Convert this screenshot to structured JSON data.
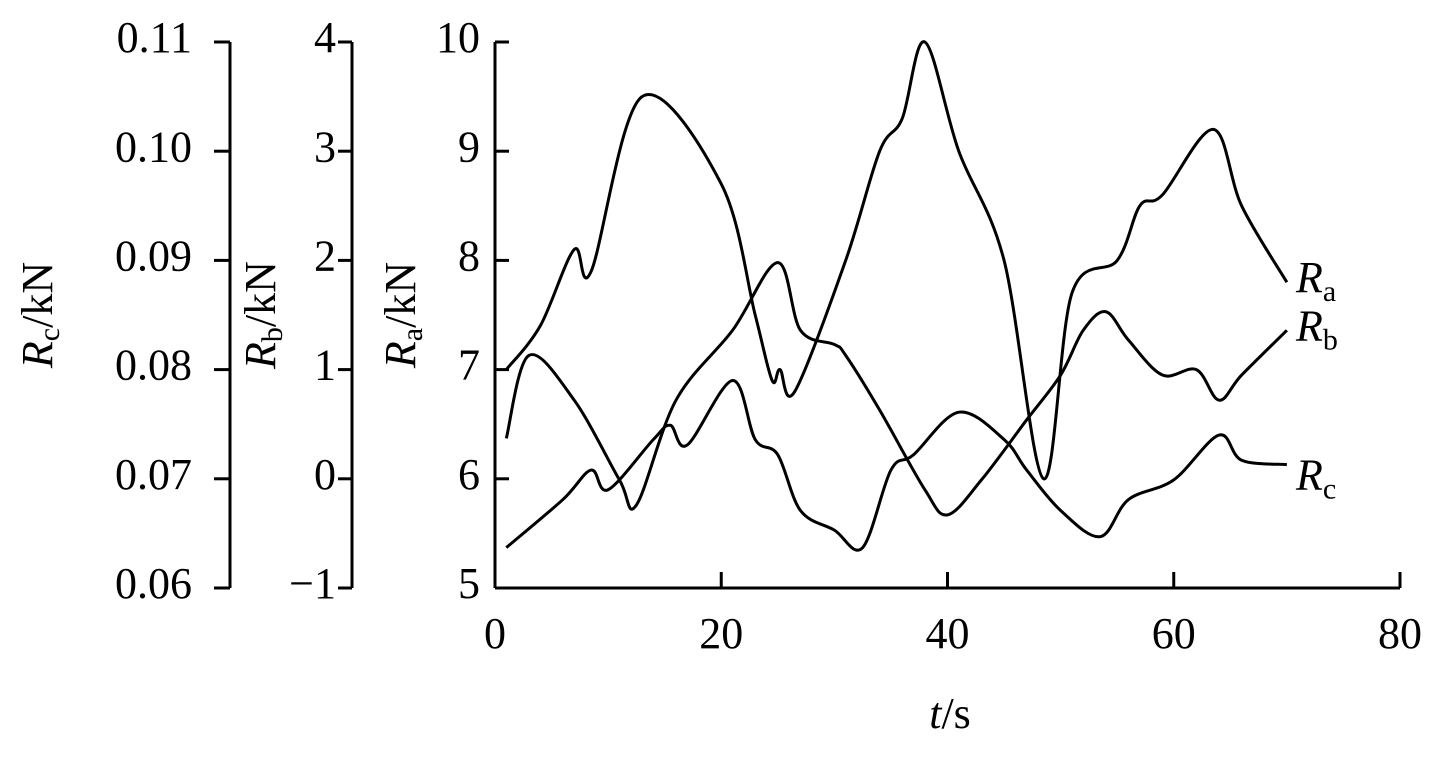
{
  "chart_data": {
    "type": "line",
    "x_label": {
      "symbol": "t",
      "unit": "/s"
    },
    "xlim": [
      0,
      80
    ],
    "xticks": [
      0,
      20,
      40,
      60,
      80
    ],
    "axes": [
      {
        "symbol": "R",
        "subscript": "c",
        "unit": "/kN",
        "ylim": [
          0.06,
          0.11
        ],
        "yticks": [
          {
            "value": 0.06,
            "label": "0.06"
          },
          {
            "value": 0.07,
            "label": "0.07"
          },
          {
            "value": 0.08,
            "label": "0.08"
          },
          {
            "value": 0.09,
            "label": "0.09"
          },
          {
            "value": 0.1,
            "label": "0.10"
          },
          {
            "value": 0.11,
            "label": "0.11"
          }
        ]
      },
      {
        "symbol": "R",
        "subscript": "b",
        "unit": "/kN",
        "ylim": [
          -1,
          4
        ],
        "yticks": [
          {
            "value": -1,
            "label": "−1"
          },
          0,
          1,
          2,
          3,
          4
        ]
      },
      {
        "symbol": "R",
        "subscript": "a",
        "unit": "/kN",
        "ylim": [
          5,
          10
        ],
        "yticks": [
          5,
          6,
          7,
          8,
          9,
          10
        ]
      }
    ],
    "series": [
      {
        "name": "R",
        "subscript": "a",
        "axis": 2,
        "color": "#000000",
        "x": [
          1,
          4,
          7,
          8.5,
          13,
          20,
          23,
          24.5,
          25.2,
          26.5,
          31,
          34,
          36,
          38,
          41,
          45,
          48.5,
          51,
          55,
          57,
          59,
          63.5,
          66,
          70
        ],
        "values": [
          7.0,
          7.4,
          8.1,
          7.9,
          9.5,
          8.7,
          7.5,
          6.9,
          7.0,
          6.8,
          8.0,
          9.0,
          9.3,
          10.0,
          9.0,
          8.0,
          6.0,
          7.7,
          8.0,
          8.5,
          8.6,
          9.2,
          8.5,
          7.8
        ]
      },
      {
        "name": "R",
        "subscript": "b",
        "axis": 1,
        "color": "#000000",
        "x": [
          1,
          3,
          7,
          11,
          12.5,
          16,
          21,
          25,
          27,
          30,
          31,
          34,
          38,
          40,
          43,
          47,
          50,
          52,
          54,
          56,
          59,
          62,
          64,
          66,
          70
        ],
        "values": [
          0.37,
          1.13,
          0.72,
          -0.01,
          -0.24,
          0.72,
          1.36,
          1.98,
          1.36,
          1.23,
          1.13,
          0.63,
          -0.1,
          -0.33,
          -0.01,
          0.54,
          0.95,
          1.36,
          1.53,
          1.27,
          0.95,
          1.0,
          0.72,
          0.95,
          1.36
        ]
      },
      {
        "name": "R",
        "subscript": "c",
        "axis": 0,
        "color": "#000000",
        "x": [
          1,
          6,
          8.5,
          10,
          14,
          15.5,
          17,
          21,
          23,
          25,
          27,
          30,
          32.5,
          35,
          37,
          41,
          45,
          47,
          50,
          53.5,
          56,
          60,
          64,
          66,
          70
        ],
        "values": [
          0.0637,
          0.0681,
          0.0708,
          0.069,
          0.0736,
          0.0749,
          0.0731,
          0.079,
          0.0736,
          0.0722,
          0.0671,
          0.0653,
          0.0637,
          0.0708,
          0.0722,
          0.0761,
          0.0736,
          0.0708,
          0.0671,
          0.0647,
          0.0681,
          0.0699,
          0.074,
          0.0717,
          0.0713
        ]
      }
    ]
  }
}
